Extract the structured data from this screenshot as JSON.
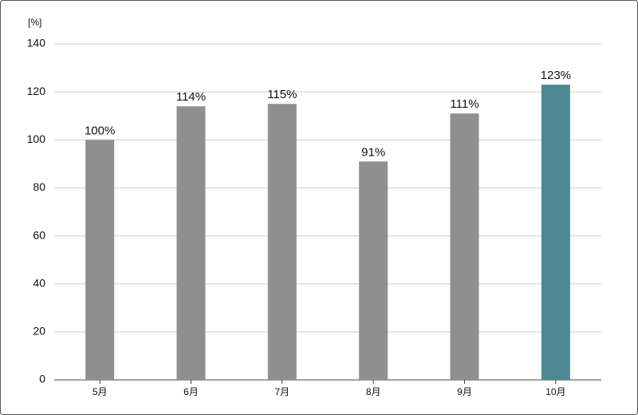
{
  "chart_data": {
    "type": "bar",
    "y_label": "[%]",
    "categories": [
      "5月",
      "6月",
      "7月",
      "8月",
      "9月",
      "10月"
    ],
    "values": [
      100,
      114,
      115,
      91,
      111,
      123
    ],
    "value_labels": [
      "100%",
      "114%",
      "115%",
      "91%",
      "111%",
      "123%"
    ],
    "colors": [
      "#8f8f8f",
      "#8f8f8f",
      "#8f8f8f",
      "#8f8f8f",
      "#8f8f8f",
      "#4e8890"
    ],
    "ylim": [
      0,
      140
    ],
    "yticks": [
      0,
      20,
      40,
      60,
      80,
      100,
      120,
      140
    ],
    "grid": true
  }
}
